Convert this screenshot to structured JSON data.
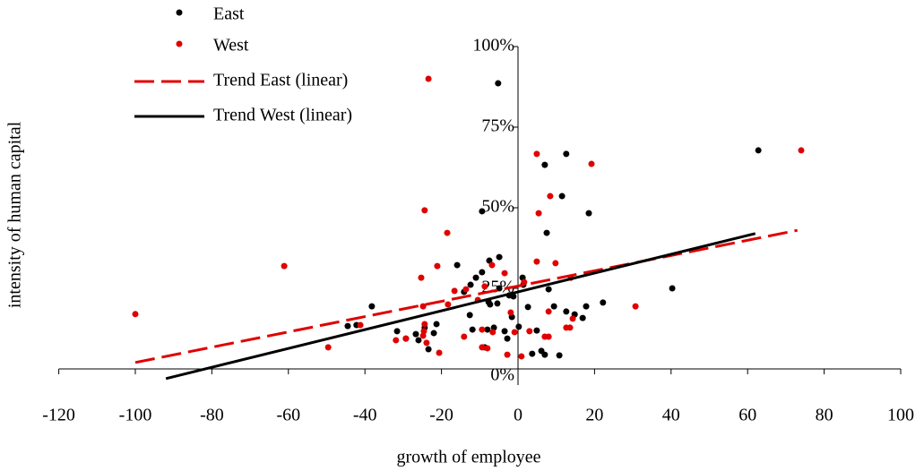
{
  "chart_data": {
    "type": "scatter",
    "x_label": "growth of employee",
    "y_label": "intensity of human capital",
    "xlim": [
      -120,
      100
    ],
    "xticks": [
      -120,
      -100,
      -80,
      -60,
      -40,
      -20,
      0,
      20,
      40,
      60,
      80,
      100
    ],
    "ylim": [
      -5,
      100
    ],
    "yticks": [
      {
        "value": 0,
        "label": "0%"
      },
      {
        "value": 25,
        "label": "25%"
      },
      {
        "value": 50,
        "label": "50%"
      },
      {
        "value": 75,
        "label": "75%"
      },
      {
        "value": 100,
        "label": "100%"
      }
    ],
    "grid": false,
    "legend": "top-left",
    "series": [
      {
        "name": "East",
        "type": "scatter",
        "color": "#000000",
        "x": [
          -5.2,
          62.8,
          7,
          12.6,
          11.5,
          18.5,
          7.5,
          -9.4,
          -4.9,
          -7.5,
          -15.9,
          -9.4,
          -11,
          -12.4,
          -4.9,
          -14.1,
          1.2,
          8,
          1.4,
          -2.3,
          -1.2,
          -7.7,
          -5.4,
          -7.3,
          2.6,
          9.4,
          12.6,
          14.8,
          17.8,
          22.2,
          16.9,
          -38.2,
          -42.2,
          -44.5,
          -12.6,
          -21.3,
          -22,
          -24.4,
          -26.7,
          -31.6,
          -29.3,
          -26,
          -23.4,
          -8,
          -3.5,
          0.2,
          -6.3,
          -11.9,
          -8.7,
          -2.8,
          4.9,
          6.1,
          7,
          3.7,
          10.8,
          -1.6,
          40.3
        ],
        "values": [
          88.6,
          67.8,
          63.3,
          66.7,
          53.6,
          48.3,
          42.2,
          48.9,
          34.7,
          33.6,
          32.2,
          30,
          28.3,
          26.1,
          25,
          23.9,
          28.3,
          24.7,
          26.1,
          22.8,
          22.5,
          20.8,
          20.3,
          20,
          19.2,
          19.4,
          17.8,
          16.9,
          19.4,
          20.6,
          15.8,
          19.4,
          13.6,
          13.3,
          16.7,
          13.9,
          11.1,
          12.8,
          10.8,
          11.7,
          9.4,
          8.9,
          6.1,
          12.2,
          11.7,
          13.1,
          12.8,
          12.2,
          6.7,
          9.4,
          11.9,
          5.6,
          4.4,
          4.7,
          4.2,
          16.1,
          25
        ]
      },
      {
        "name": "West",
        "type": "scatter",
        "color": "#e00000",
        "x": [
          -100,
          -61.1,
          -49.6,
          -41.2,
          -23.4,
          74,
          4.9,
          19.2,
          8.4,
          5.4,
          -24.4,
          -18.5,
          -21.1,
          -25.3,
          -6.8,
          -3.5,
          4.9,
          9.8,
          13.8,
          -13.6,
          -16.6,
          -8.7,
          1.6,
          -18.3,
          -24.8,
          -10.5,
          -1.9,
          8,
          8,
          14.3,
          13.6,
          12.6,
          30.7,
          -24.4,
          -24.6,
          -24.8,
          -31.9,
          -29.3,
          -23.9,
          -14.1,
          -9.4,
          -6.6,
          -0.9,
          3,
          -9.4,
          -8,
          -2.8,
          0.9,
          -20.6,
          7
        ],
        "values": [
          17,
          31.9,
          6.7,
          13.6,
          90,
          67.8,
          66.7,
          63.6,
          53.6,
          48.3,
          49.2,
          42.2,
          31.9,
          28.3,
          32.2,
          29.7,
          33.3,
          32.8,
          28.3,
          24.7,
          24.2,
          25.6,
          26.9,
          20,
          19.4,
          21.4,
          17.5,
          17.8,
          10,
          15.6,
          12.8,
          12.8,
          19.4,
          13.9,
          11.7,
          10.3,
          8.9,
          9.4,
          8.1,
          10,
          12.2,
          11.4,
          11.4,
          11.7,
          6.7,
          6.4,
          4.4,
          3.9,
          5,
          10
        ]
      },
      {
        "name": "Trend East (linear)",
        "type": "line",
        "dash": true,
        "color": "#e00000",
        "x": [
          -100,
          73
        ],
        "values": [
          2,
          43
        ]
      },
      {
        "name": "Trend West (linear)",
        "type": "line",
        "dash": false,
        "color": "#000000",
        "x": [
          -92,
          62
        ],
        "values": [
          -3,
          42
        ]
      }
    ]
  }
}
